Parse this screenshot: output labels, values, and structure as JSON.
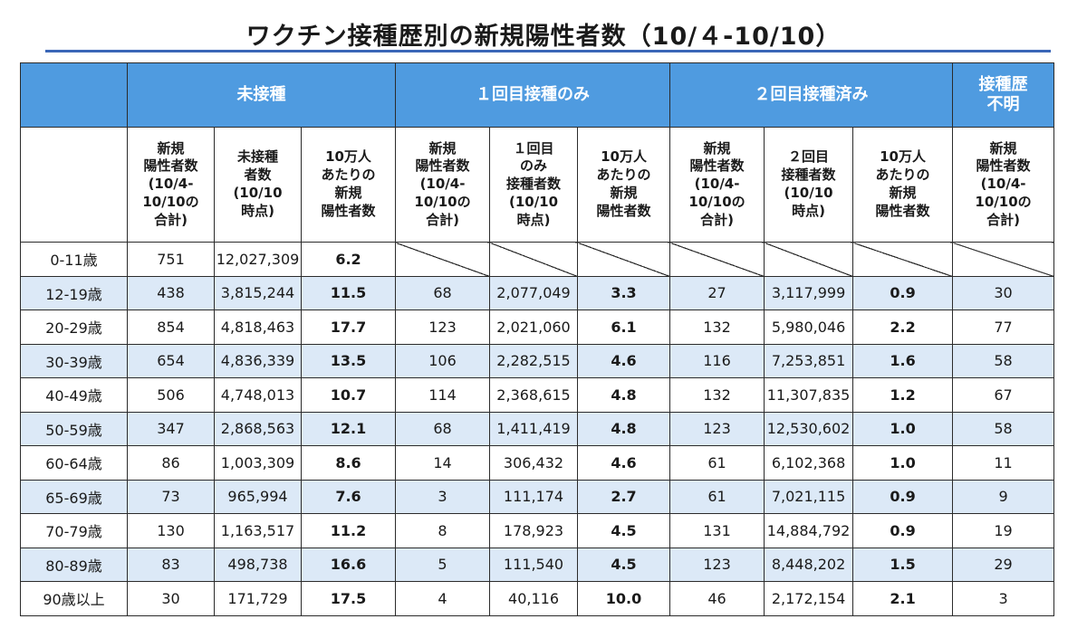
{
  "title": "ワクチン接種歴別の新規陽性者数（10/４-10/10）",
  "groups": [
    "未接種",
    "１回目接種のみ",
    "２回目接種済み",
    "接種歴\n不明"
  ],
  "subheaders": [
    "新規\n陽性者数\n(10/4-\n10/10の\n合計)",
    "未接種\n者数\n(10/10\n時点)",
    "10万人\nあたりの\n新規\n陽性者数",
    "新規\n陽性者数\n(10/4-\n10/10の\n合計)",
    "１回目\nのみ\n接種者数\n(10/10\n時点)",
    "10万人\nあたりの\n新規\n陽性者数",
    "新規\n陽性者数\n(10/4-\n10/10の\n合計)",
    "２回目\n接種者数\n(10/10\n時点)",
    "10万人\nあたりの\n新規\n陽性者数",
    "新規\n陽性者数\n(10/4-\n10/10の\n合計)"
  ],
  "rows": [
    {
      "age": "0-11歳",
      "c": [
        "751",
        "12,027,309",
        "6.2",
        null,
        null,
        null,
        null,
        null,
        null,
        null
      ]
    },
    {
      "age": "12-19歳",
      "c": [
        "438",
        "3,815,244",
        "11.5",
        "68",
        "2,077,049",
        "3.3",
        "27",
        "3,117,999",
        "0.9",
        "30"
      ]
    },
    {
      "age": "20-29歳",
      "c": [
        "854",
        "4,818,463",
        "17.7",
        "123",
        "2,021,060",
        "6.1",
        "132",
        "5,980,046",
        "2.2",
        "77"
      ]
    },
    {
      "age": "30-39歳",
      "c": [
        "654",
        "4,836,339",
        "13.5",
        "106",
        "2,282,515",
        "4.6",
        "116",
        "7,253,851",
        "1.6",
        "58"
      ]
    },
    {
      "age": "40-49歳",
      "c": [
        "506",
        "4,748,013",
        "10.7",
        "114",
        "2,368,615",
        "4.8",
        "132",
        "11,307,835",
        "1.2",
        "67"
      ]
    },
    {
      "age": "50-59歳",
      "c": [
        "347",
        "2,868,563",
        "12.1",
        "68",
        "1,411,419",
        "4.8",
        "123",
        "12,530,602",
        "1.0",
        "58"
      ]
    },
    {
      "age": "60-64歳",
      "c": [
        "86",
        "1,003,309",
        "8.6",
        "14",
        "306,432",
        "4.6",
        "61",
        "6,102,368",
        "1.0",
        "11"
      ]
    },
    {
      "age": "65-69歳",
      "c": [
        "73",
        "965,994",
        "7.6",
        "3",
        "111,174",
        "2.7",
        "61",
        "7,021,115",
        "0.9",
        "9"
      ]
    },
    {
      "age": "70-79歳",
      "c": [
        "130",
        "1,163,517",
        "11.2",
        "8",
        "178,923",
        "4.5",
        "131",
        "14,884,792",
        "0.9",
        "19"
      ]
    },
    {
      "age": "80-89歳",
      "c": [
        "83",
        "498,738",
        "16.6",
        "5",
        "111,540",
        "4.5",
        "123",
        "8,448,202",
        "1.5",
        "29"
      ]
    },
    {
      "age": "90歳以上",
      "c": [
        "30",
        "171,729",
        "17.5",
        "4",
        "40,116",
        "10.0",
        "46",
        "2,172,154",
        "2.1",
        "3"
      ]
    }
  ],
  "colors": {
    "header": "#4f9be0",
    "stripe": "#dce9f7",
    "rule": "#3a66b7"
  }
}
